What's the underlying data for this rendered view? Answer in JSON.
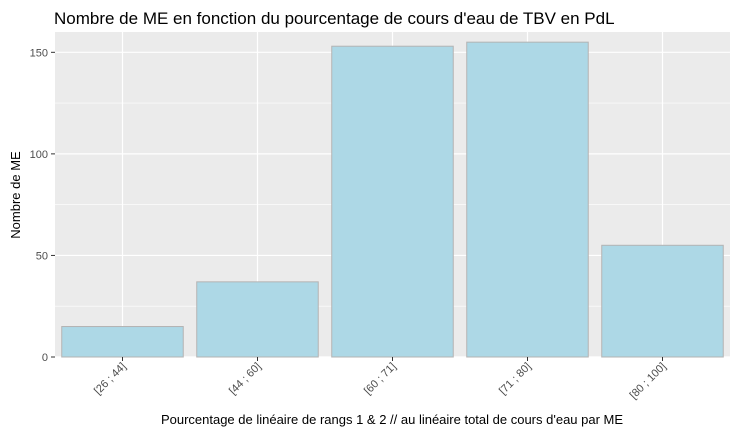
{
  "chart_data": {
    "type": "bar",
    "title": "Nombre de ME en fonction du pourcentage de cours d'eau de TBV en PdL",
    "xlabel": "Pourcentage de linéaire de rangs 1 & 2 // au linéaire total de cours d'eau par ME",
    "ylabel": "Nombre de ME",
    "categories": [
      "[26 ; 44]",
      "[44 ; 60]",
      "[60 ; 71]",
      "[71 ; 80]",
      "[80 ; 100]"
    ],
    "values": [
      15,
      37,
      153,
      155,
      55
    ],
    "ylim": [
      0,
      160
    ],
    "yticks": [
      0,
      50,
      100,
      150
    ],
    "grid": true,
    "bar_fill": "#add8e6",
    "bar_stroke": "#b3b3b3",
    "panel_background": "#ebebeb",
    "gridline_color": "#ffffff"
  }
}
